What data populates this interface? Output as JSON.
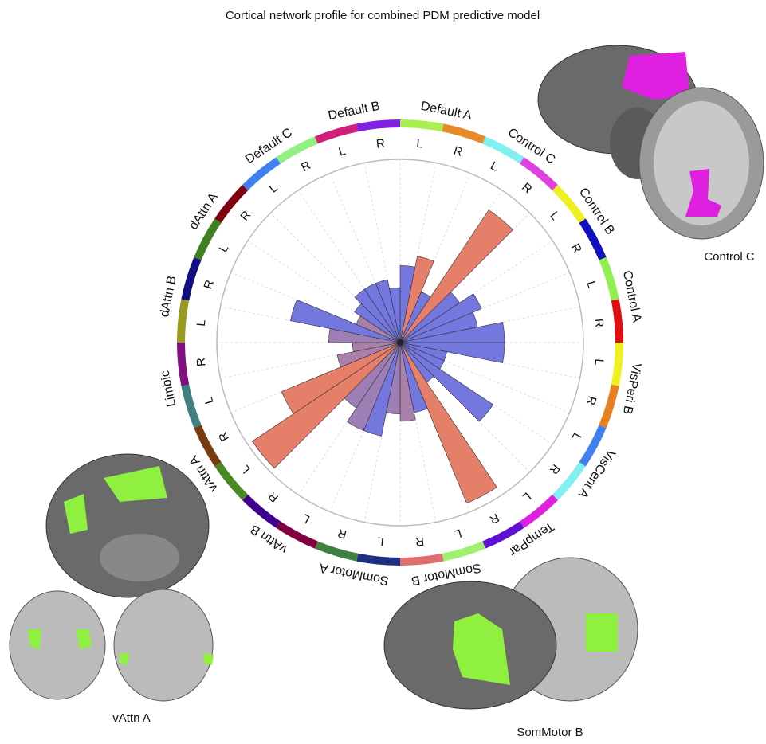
{
  "chart_data": {
    "type": "polar_bar",
    "title": "Cortical network profile for combined PDM predictive model",
    "groups": [
      "Default A",
      "Control C",
      "Control B",
      "Control A",
      "VisPeri B",
      "VisCent A",
      "TempPar",
      "SomMotor B",
      "SomMotor A",
      "vAttn B",
      "vAttn A",
      "Limbic",
      "dAttn B",
      "dAttn A",
      "Default C",
      "Default B"
    ],
    "categories": [
      "L",
      "R",
      "L",
      "R",
      "L",
      "R",
      "L",
      "R",
      "L",
      "R",
      "L",
      "R",
      "L",
      "R",
      "L",
      "R",
      "L",
      "R",
      "L",
      "R",
      "L",
      "R",
      "L",
      "R",
      "L",
      "R",
      "L",
      "R",
      "L",
      "R",
      "L",
      "R"
    ],
    "values": [
      0.42,
      0.48,
      0.3,
      0.87,
      0.39,
      0.48,
      0.43,
      0.57,
      0.57,
      0.26,
      0.26,
      0.61,
      0.26,
      0.95,
      0.39,
      0.43,
      0.39,
      0.52,
      0.52,
      0.43,
      0.97,
      0.7,
      0.35,
      0.26,
      0.39,
      0.61,
      0.26,
      0.3,
      0.35,
      0.35,
      0.35,
      0.3
    ],
    "colors": [
      "#5b5fd8",
      "#e0694f",
      "#5b5fd8",
      "#e0694f",
      "#5b5fd8",
      "#5b5fd8",
      "#5b5fd8",
      "#5b5fd8",
      "#5b5fd8",
      "#5b5fd8",
      "#5b5fd8",
      "#5b5fd8",
      "#5b5fd8",
      "#e0694f",
      "#5b5fd8",
      "#9a6a9a",
      "#8d68a8",
      "#5b5fd8",
      "#8d68a8",
      "#8d68a8",
      "#e0694f",
      "#e0694f",
      "#9a6a9a",
      "#9a6a9a",
      "#8d68a8",
      "#5b5fd8",
      "#9a6a9a",
      "#5b5fd8",
      "#5b5fd8",
      "#5b5fd8",
      "#5b5fd8",
      "#5b5fd8"
    ],
    "ring_colors": [
      "#a8f050",
      "#e88a2a",
      "#80f0f0",
      "#e040e0",
      "#f0f020",
      "#1010c0",
      "#90f050",
      "#e01010",
      "#f0f020",
      "#e88020",
      "#4080f0",
      "#80f0f0",
      "#e020e0",
      "#6010d0",
      "#a0f070",
      "#e07070",
      "#203080",
      "#408040",
      "#800040",
      "#400090",
      "#4a8a20",
      "#7a3a10",
      "#408080",
      "#801080",
      "#9a9a20",
      "#101080",
      "#408020",
      "#800010",
      "#4080f0",
      "#90f080",
      "#d0207a",
      "#8020e0"
    ],
    "ylim": [
      0,
      1
    ],
    "grid": true,
    "annotations": [
      "Control C",
      "vAttn A",
      "SomMotor B"
    ]
  }
}
